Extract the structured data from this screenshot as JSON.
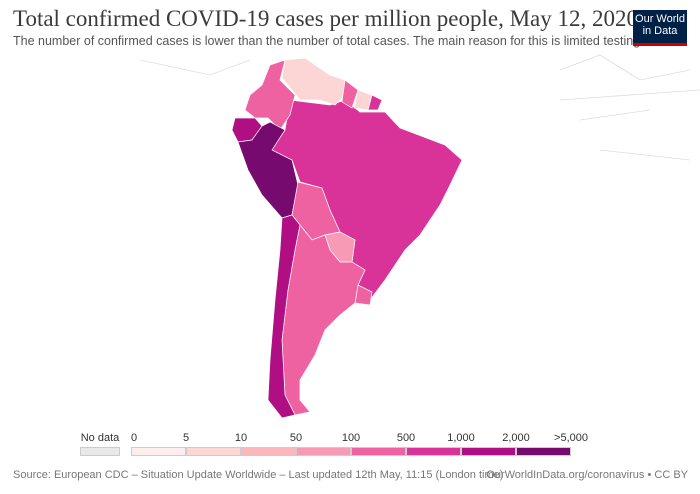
{
  "title": "Total confirmed COVID-19 cases per million people, May 12, 2020",
  "subtitle": "The number of confirmed cases is lower than the number of total cases. The main reason for this is limited testing.",
  "logo": {
    "line1": "Our World",
    "line2": "in Data"
  },
  "legend": {
    "no_data": "No data",
    "no_data_color": "#e8e8e8",
    "ticks": [
      "0",
      "5",
      "10",
      "50",
      "100",
      "500",
      "1,000",
      "2,000",
      ">5,000"
    ],
    "colors": [
      "#fdeeee",
      "#fcd5d5",
      "#fab8bc",
      "#f79ab5",
      "#ef62a2",
      "#d9339a",
      "#b00e83",
      "#760a6e"
    ]
  },
  "countries": {
    "Peru": "#760a6e",
    "Ecuador": "#b00e83",
    "Chile": "#b00e83",
    "Brazil": "#d9339a",
    "Colombia": "#ef62a2",
    "Bolivia": "#ef62a2",
    "Argentina": "#ef62a2",
    "Venezuela": "#fcd5d5",
    "Paraguay": "#f79ab5",
    "Uruguay": "#ef62a2",
    "Guyana": "#ef62a2",
    "Suriname": "#fcd5d5",
    "French Guiana": "#d9339a"
  },
  "source": "Source: European CDC – Situation Update Worldwide – Last updated 12th May, 11:15 (London time)",
  "url": "OurWorldInData.org/coronavirus • CC BY"
}
